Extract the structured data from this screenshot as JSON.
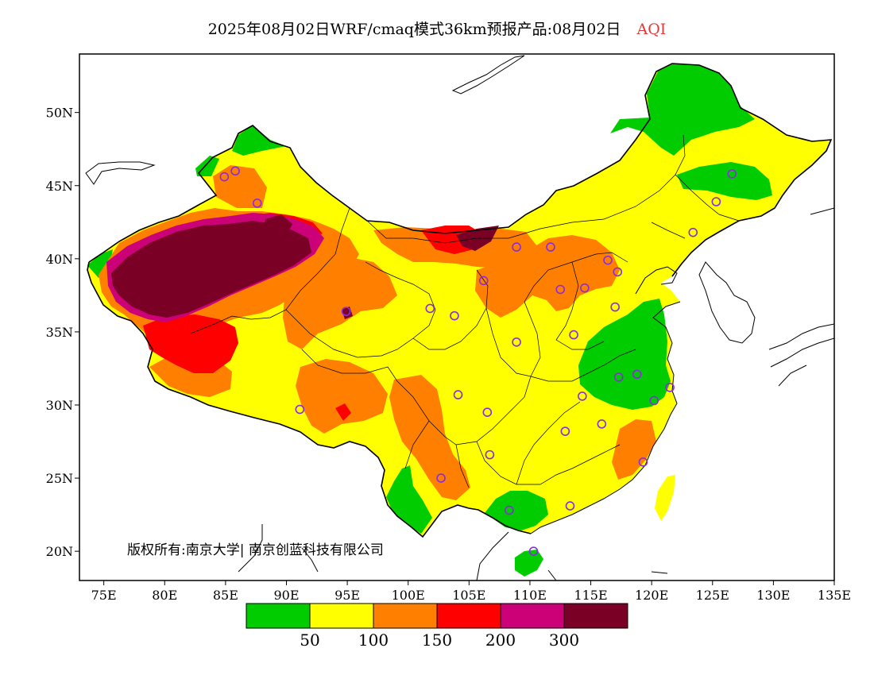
{
  "title": {
    "main": "2025年08月02日WRF/cmaq模式36km预报产品:08月02日",
    "quantity": "AQI"
  },
  "colors": {
    "quantity_label": "#e23a3a",
    "frame": "#000000",
    "coast_line": "#000000",
    "province_line": "#000000",
    "station_marker": "#8a2be2"
  },
  "axes": {
    "lat_labels": [
      "50N",
      "45N",
      "40N",
      "35N",
      "30N",
      "25N",
      "20N"
    ],
    "lon_labels": [
      "75E",
      "80E",
      "85E",
      "90E",
      "95E",
      "100E",
      "105E",
      "110E",
      "115E",
      "120E",
      "125E",
      "130E",
      "135E"
    ],
    "lat_range": [
      18,
      54
    ],
    "lon_range": [
      73,
      135
    ]
  },
  "copyright": "版权所有:南京大学| 南京创蓝科技有限公司",
  "legend": {
    "colors": [
      "#00cc00",
      "#ffff00",
      "#ff8000",
      "#ff0000",
      "#cc0077",
      "#7a0026"
    ],
    "ticks": [
      "50",
      "100",
      "150",
      "200",
      "300"
    ],
    "classes": [
      {
        "range": [
          0,
          50
        ]
      },
      {
        "range": [
          50,
          100
        ]
      },
      {
        "range": [
          100,
          150
        ]
      },
      {
        "range": [
          150,
          200
        ]
      },
      {
        "range": [
          200,
          300
        ]
      },
      {
        "range": [
          300,
          500
        ]
      }
    ]
  },
  "stations_lonlat": [
    [
      84.9,
      45.6
    ],
    [
      85.8,
      46.0
    ],
    [
      87.6,
      43.8
    ],
    [
      91.1,
      29.7
    ],
    [
      94.9,
      36.4
    ],
    [
      101.8,
      36.6
    ],
    [
      103.8,
      36.1
    ],
    [
      106.2,
      38.5
    ],
    [
      108.9,
      40.8
    ],
    [
      104.1,
      30.7
    ],
    [
      106.5,
      29.5
    ],
    [
      102.7,
      25.0
    ],
    [
      106.7,
      26.6
    ],
    [
      108.3,
      22.8
    ],
    [
      110.3,
      20.0
    ],
    [
      108.9,
      34.3
    ],
    [
      112.5,
      37.9
    ],
    [
      114.5,
      38.0
    ],
    [
      111.7,
      40.8
    ],
    [
      116.4,
      39.9
    ],
    [
      117.2,
      39.1
    ],
    [
      117.0,
      36.7
    ],
    [
      113.6,
      34.8
    ],
    [
      112.9,
      28.2
    ],
    [
      114.3,
      30.6
    ],
    [
      115.9,
      28.7
    ],
    [
      117.3,
      31.9
    ],
    [
      118.8,
      32.1
    ],
    [
      120.2,
      30.3
    ],
    [
      121.5,
      31.2
    ],
    [
      119.3,
      26.1
    ],
    [
      113.3,
      23.1
    ],
    [
      123.4,
      41.8
    ],
    [
      125.3,
      43.9
    ],
    [
      126.6,
      45.8
    ]
  ]
}
